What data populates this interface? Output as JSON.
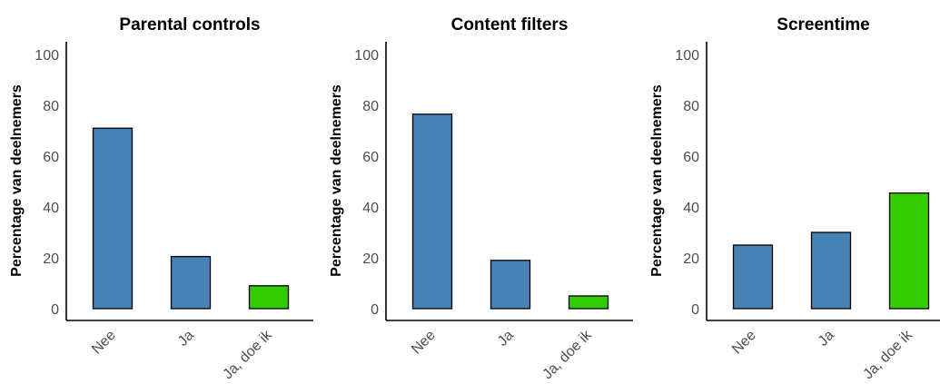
{
  "chart_data": [
    {
      "type": "bar",
      "title": "Parental controls",
      "ylabel": "Percentage van deelnemers",
      "xlabel": "",
      "categories": [
        "Nee",
        "Ja",
        "Ja, doe ik"
      ],
      "values": [
        71,
        20.5,
        9
      ],
      "colors": [
        "#4682b4",
        "#4682b4",
        "#33cc00"
      ],
      "ylim": [
        0,
        100
      ],
      "yticks": [
        0,
        20,
        40,
        60,
        80,
        100
      ],
      "grid": false
    },
    {
      "type": "bar",
      "title": "Content filters",
      "ylabel": "Percentage van deelnemers",
      "xlabel": "",
      "categories": [
        "Nee",
        "Ja",
        "Ja, doe ik"
      ],
      "values": [
        76.5,
        19,
        5
      ],
      "colors": [
        "#4682b4",
        "#4682b4",
        "#33cc00"
      ],
      "ylim": [
        0,
        100
      ],
      "yticks": [
        0,
        20,
        40,
        60,
        80,
        100
      ],
      "grid": false
    },
    {
      "type": "bar",
      "title": "Screentime",
      "ylabel": "Percentage van deelnemers",
      "xlabel": "",
      "categories": [
        "Nee",
        "Ja",
        "Ja, doe ik"
      ],
      "values": [
        25,
        30,
        45.5
      ],
      "colors": [
        "#4682b4",
        "#4682b4",
        "#33cc00"
      ],
      "ylim": [
        0,
        100
      ],
      "yticks": [
        0,
        20,
        40,
        60,
        80,
        100
      ],
      "grid": false
    }
  ]
}
